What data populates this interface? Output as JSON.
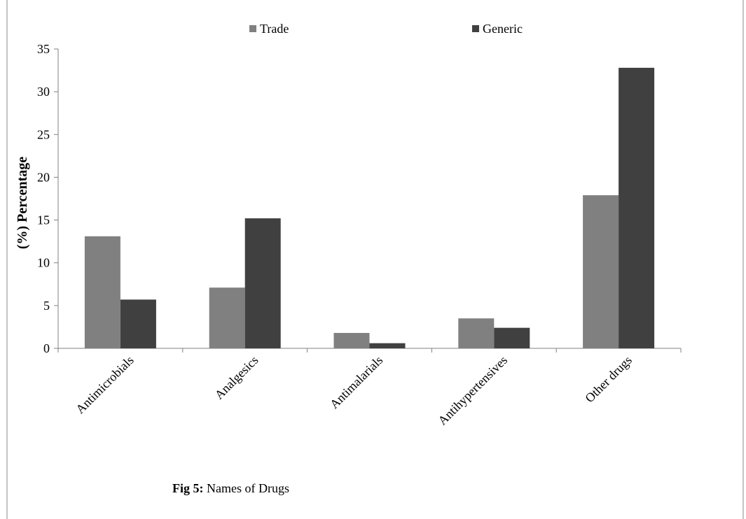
{
  "chart_data": {
    "type": "bar",
    "categories": [
      "Antimicrobials",
      "Analgesics",
      "Antimalarials",
      "Antihypertensives",
      "Other drugs"
    ],
    "series": [
      {
        "name": "Trade",
        "values": [
          13.1,
          7.1,
          1.8,
          3.5,
          17.9
        ],
        "color": "#808080"
      },
      {
        "name": "Generic",
        "values": [
          5.7,
          15.2,
          0.6,
          2.4,
          32.8
        ],
        "color": "#404040"
      }
    ],
    "ylabel": "(%) Percentage",
    "ylim": [
      0,
      35
    ],
    "yticks": [
      0,
      5,
      10,
      15,
      20,
      25,
      30,
      35
    ],
    "grid": false,
    "legend_position": "top"
  },
  "caption": {
    "prefix": "Fig  5:",
    "text": " Names of Drugs"
  }
}
